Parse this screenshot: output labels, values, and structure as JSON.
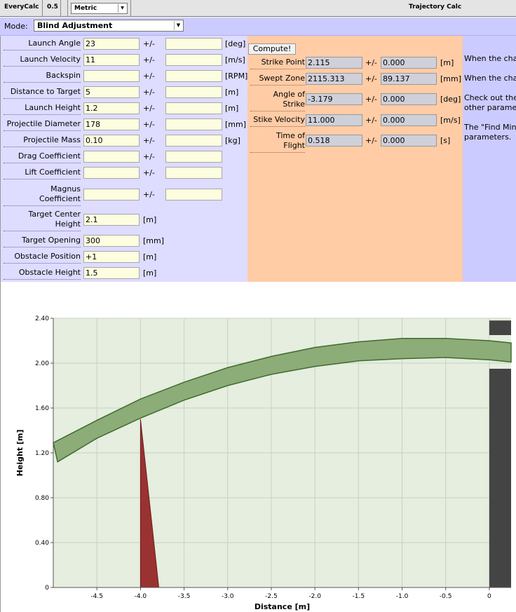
{
  "topbar": {
    "app_name": "EveryCalc",
    "version": "0.5",
    "units_selected": "Metric",
    "title": "Trajectory Calc"
  },
  "mode": {
    "label": "Mode:",
    "selected": "Blind Adjustment"
  },
  "inputs": {
    "pm": "+/-",
    "launch_angle": {
      "label": "Launch Angle",
      "value": "23",
      "tol": "",
      "unit": "[deg]"
    },
    "launch_velocity": {
      "label": "Launch Velocity",
      "value": "11",
      "tol": "",
      "unit": "[m/s]"
    },
    "backspin": {
      "label": "Backspin",
      "value": "",
      "tol": "",
      "unit": "[RPM]"
    },
    "distance_to_target": {
      "label": "Distance to Target",
      "value": "5",
      "tol": "",
      "unit": "[m]"
    },
    "launch_height": {
      "label": "Launch Height",
      "value": "1.2",
      "tol": "",
      "unit": "[m]"
    },
    "projectile_diameter": {
      "label": "Projectile Diameter",
      "value": "178",
      "tol": "",
      "unit": "[mm]"
    },
    "projectile_mass": {
      "label": "Projectile Mass",
      "value": "0.10",
      "tol": "",
      "unit": "[kg]"
    },
    "drag_coefficient": {
      "label": "Drag Coefficient",
      "value": "",
      "tol": ""
    },
    "lift_coefficient": {
      "label": "Lift Coefficient",
      "value": "",
      "tol": ""
    },
    "magnus_coefficient": {
      "label_1": "Magnus",
      "label_2": "Coefficient",
      "value": "",
      "tol": ""
    },
    "target_center_height": {
      "label_1": "Target Center",
      "label_2": "Height",
      "value": "2.1",
      "unit": "[m]"
    },
    "target_opening": {
      "label": "Target Opening",
      "value": "300",
      "unit": "[mm]"
    },
    "obstacle_position": {
      "label": "Obstacle Position",
      "value": "+1",
      "unit": "[m]"
    },
    "obstacle_height": {
      "label": "Obstacle Height",
      "value": "1.5",
      "unit": "[m]"
    }
  },
  "outputs": {
    "compute_label": "Compute!",
    "pm": "+/-",
    "strike_point": {
      "label": "Strike Point",
      "value": "2.115",
      "tol": "0.000",
      "unit": "[m]"
    },
    "swept_zone": {
      "label": "Swept Zone",
      "value": "2115.313",
      "tol": "89.137",
      "unit": "[mm]"
    },
    "angle_of_strike": {
      "label_1": "Angle of",
      "label_2": "Strike",
      "value": "-3.179",
      "tol": "0.000",
      "unit": "[deg]"
    },
    "strike_velocity": {
      "label": "Stike Velocity",
      "value": "11.000",
      "tol": "0.000",
      "unit": "[m/s]"
    },
    "time_of_flight": {
      "label_1": "Time of",
      "label_2": "Flight",
      "value": "0.518",
      "tol": "0.000",
      "unit": "[s]"
    }
  },
  "help": {
    "line1": "When the cha",
    "line2": "When the cha",
    "line3": "Check out the",
    "line4": "other parame",
    "line5": "The \"Find Min",
    "line6": "parameters."
  },
  "chart_data": {
    "type": "area",
    "xlabel": "Distance [m]",
    "ylabel": "Height [m]",
    "xlim": [
      -5.0,
      0.25
    ],
    "ylim": [
      0,
      2.4
    ],
    "x_ticks": [
      "-4.5",
      "-4.0",
      "-3.5",
      "-3.0",
      "-2.5",
      "-2.0",
      "-1.5",
      "-1.0",
      "-0.5",
      "0"
    ],
    "x_tick_values": [
      -4.5,
      -4.0,
      -3.5,
      -3.0,
      -2.5,
      -2.0,
      -1.5,
      -1.0,
      -0.5,
      0
    ],
    "y_ticks": [
      "0",
      "0.40",
      "0.80",
      "1.20",
      "1.60",
      "2.00",
      "2.40"
    ],
    "y_tick_values": [
      0,
      0.4,
      0.8,
      1.2,
      1.6,
      2.0,
      2.4
    ],
    "grid": true,
    "trajectory_band": {
      "upper": [
        [
          -5.0,
          1.29
        ],
        [
          -4.5,
          1.49
        ],
        [
          -4.0,
          1.68
        ],
        [
          -3.5,
          1.83
        ],
        [
          -3.0,
          1.96
        ],
        [
          -2.5,
          2.06
        ],
        [
          -2.0,
          2.14
        ],
        [
          -1.5,
          2.19
        ],
        [
          -1.0,
          2.22
        ],
        [
          -0.5,
          2.22
        ],
        [
          0.0,
          2.2
        ],
        [
          0.25,
          2.18
        ]
      ],
      "lower": [
        [
          -4.95,
          1.12
        ],
        [
          -4.5,
          1.33
        ],
        [
          -4.0,
          1.51
        ],
        [
          -3.5,
          1.67
        ],
        [
          -3.0,
          1.8
        ],
        [
          -2.5,
          1.9
        ],
        [
          -2.0,
          1.97
        ],
        [
          -1.5,
          2.02
        ],
        [
          -1.0,
          2.04
        ],
        [
          -0.5,
          2.05
        ],
        [
          0.0,
          2.03
        ],
        [
          0.25,
          2.01
        ]
      ],
      "color": "#8cac78",
      "edge": "#3f6b2f"
    },
    "obstacle": {
      "x_base_left": -4.0,
      "x_base_right": -3.79,
      "x_top": -4.0,
      "height": 1.5,
      "color": "#9a3232"
    },
    "target": {
      "x_left": 0.0,
      "x_right": 0.4,
      "opening_bottom": 1.95,
      "opening_top": 2.25,
      "lip_top": 2.38,
      "color": "#444444"
    },
    "plot_bg": "#e5eedf"
  }
}
